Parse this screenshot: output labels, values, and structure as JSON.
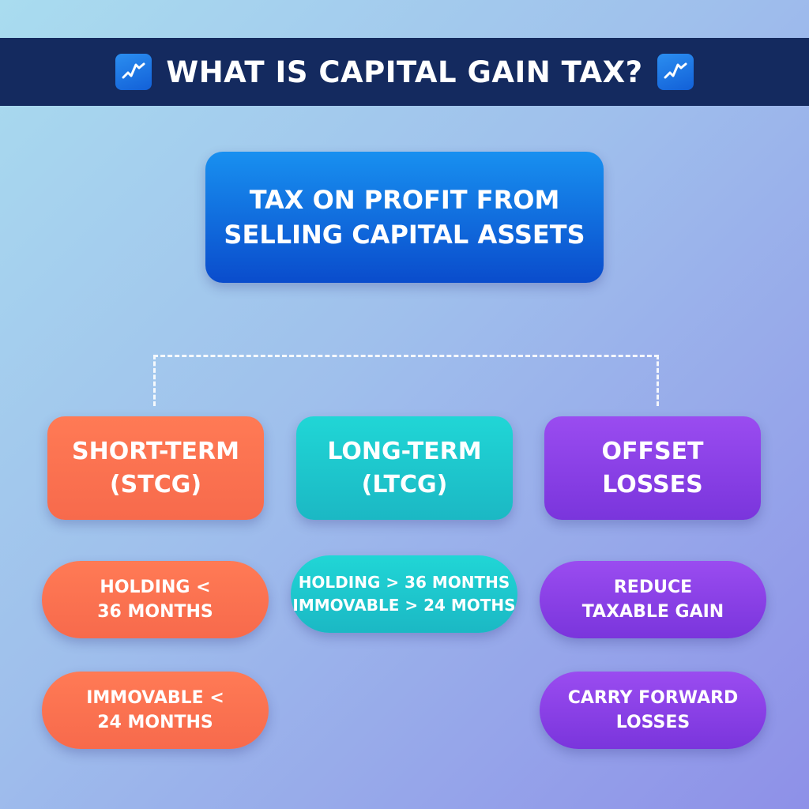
{
  "header": {
    "title": "WHAT IS CAPITAL GAIN TAX?",
    "icon": "chart-up-icon"
  },
  "definition": {
    "text_line1": "TAX ON PROFIT FROM",
    "text_line2": "SELLING CAPITAL ASSETS"
  },
  "categories": [
    {
      "line1": "SHORT-TERM",
      "line2": "(STCG)",
      "color": "#f76a4c",
      "items": [
        {
          "line1": "HOLDING <",
          "line2": "36 MONTHS"
        },
        {
          "line1": "IMMOVABLE <",
          "line2": "24 MONTHS"
        }
      ]
    },
    {
      "line1": "LONG-TERM",
      "line2": "(LTCG)",
      "color": "#1bc6cc",
      "items": [
        {
          "line1": "HOLDING > 36 MONTHS",
          "line2": "IMMOVABLE > 24 MOTHS"
        }
      ]
    },
    {
      "line1": "OFFSET",
      "line2": "LOSSES",
      "color": "#8a40e6",
      "items": [
        {
          "line1": "REDUCE",
          "line2": "TAXABLE GAIN"
        },
        {
          "line1": "CARRY FORWARD",
          "line2": "LOSSES"
        }
      ]
    }
  ]
}
